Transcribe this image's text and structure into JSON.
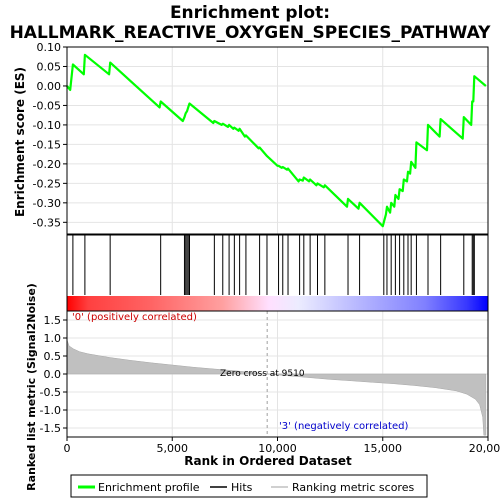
{
  "title_line1": "Enrichment plot:",
  "title_line2": "HALLMARK_REACTIVE_OXYGEN_SPECIES_PATHWAY",
  "colors": {
    "es_line": "#00ff00",
    "hits": "#000000",
    "metric_fill": "#c0c0c0",
    "pos_label": "#cc0000",
    "neg_label": "#0000cc"
  },
  "chart_data": {
    "type": "line",
    "es_panel": {
      "ylabel": "Enrichment score (ES)",
      "ylim": [
        -0.38,
        0.1
      ],
      "yticks": [
        "0.10",
        "0.05",
        "0.00",
        "-0.05",
        "-0.10",
        "-0.15",
        "-0.20",
        "-0.25",
        "-0.30",
        "-0.35"
      ],
      "ytick_values": [
        0.1,
        0.05,
        0.0,
        -0.05,
        -0.1,
        -0.15,
        -0.2,
        -0.25,
        -0.3,
        -0.35
      ],
      "grid": true,
      "es_points": [
        [
          0,
          0.0
        ],
        [
          150,
          -0.01
        ],
        [
          280,
          0.055
        ],
        [
          800,
          0.03
        ],
        [
          850,
          0.08
        ],
        [
          2000,
          0.03
        ],
        [
          2050,
          0.06
        ],
        [
          4400,
          -0.055
        ],
        [
          4450,
          -0.04
        ],
        [
          5500,
          -0.09
        ],
        [
          5580,
          -0.08
        ],
        [
          5640,
          -0.07
        ],
        [
          5700,
          -0.065
        ],
        [
          5760,
          -0.055
        ],
        [
          5820,
          -0.045
        ],
        [
          6950,
          -0.095
        ],
        [
          7000,
          -0.09
        ],
        [
          7350,
          -0.1
        ],
        [
          7400,
          -0.097
        ],
        [
          7650,
          -0.105
        ],
        [
          7700,
          -0.1
        ],
        [
          7900,
          -0.11
        ],
        [
          7950,
          -0.107
        ],
        [
          8150,
          -0.115
        ],
        [
          8200,
          -0.11
        ],
        [
          8450,
          -0.13
        ],
        [
          8500,
          -0.127
        ],
        [
          9100,
          -0.16
        ],
        [
          9150,
          -0.158
        ],
        [
          9500,
          -0.18
        ],
        [
          10000,
          -0.205
        ],
        [
          10050,
          -0.205
        ],
        [
          10200,
          -0.21
        ],
        [
          10250,
          -0.208
        ],
        [
          10450,
          -0.215
        ],
        [
          10500,
          -0.212
        ],
        [
          11000,
          -0.245
        ],
        [
          11050,
          -0.24
        ],
        [
          11200,
          -0.243
        ],
        [
          11250,
          -0.235
        ],
        [
          11500,
          -0.245
        ],
        [
          11550,
          -0.24
        ],
        [
          11850,
          -0.255
        ],
        [
          11900,
          -0.25
        ],
        [
          12200,
          -0.26
        ],
        [
          12250,
          -0.255
        ],
        [
          13300,
          -0.31
        ],
        [
          13350,
          -0.29
        ],
        [
          13850,
          -0.315
        ],
        [
          13900,
          -0.3
        ],
        [
          15000,
          -0.36
        ],
        [
          15050,
          -0.35
        ],
        [
          15150,
          -0.33
        ],
        [
          15200,
          -0.31
        ],
        [
          15350,
          -0.325
        ],
        [
          15400,
          -0.3
        ],
        [
          15550,
          -0.31
        ],
        [
          15600,
          -0.28
        ],
        [
          15750,
          -0.29
        ],
        [
          15800,
          -0.265
        ],
        [
          15950,
          -0.27
        ],
        [
          16000,
          -0.24
        ],
        [
          16150,
          -0.245
        ],
        [
          16200,
          -0.22
        ],
        [
          16300,
          -0.225
        ],
        [
          16350,
          -0.195
        ],
        [
          16550,
          -0.21
        ],
        [
          16600,
          -0.145
        ],
        [
          17100,
          -0.165
        ],
        [
          17150,
          -0.1
        ],
        [
          17700,
          -0.13
        ],
        [
          17750,
          -0.085
        ],
        [
          18800,
          -0.135
        ],
        [
          18850,
          -0.08
        ],
        [
          19200,
          -0.1
        ],
        [
          19250,
          -0.04
        ],
        [
          19300,
          -0.04
        ],
        [
          19350,
          0.025
        ],
        [
          19900,
          0.0
        ]
      ]
    },
    "hits_x": [
      280,
      850,
      2050,
      4450,
      5580,
      5640,
      5700,
      5760,
      5820,
      7000,
      7400,
      7700,
      7950,
      8200,
      8500,
      9150,
      9500,
      10050,
      10250,
      10500,
      11050,
      11250,
      11550,
      11900,
      12250,
      13350,
      13900,
      15050,
      15200,
      15400,
      15600,
      15800,
      16000,
      16200,
      16350,
      16600,
      17150,
      17750,
      18850,
      19250,
      19300,
      19350
    ],
    "metric_panel": {
      "ylabel": "Ranked list metric (Signal2Noise)",
      "ylim": [
        -1.75,
        1.75
      ],
      "yticks": [
        "1.5",
        "1.0",
        "0.5",
        "0.0",
        "-0.5",
        "-1.0",
        "-1.5"
      ],
      "ytick_values": [
        1.5,
        1.0,
        0.5,
        0.0,
        -0.5,
        -1.0,
        -1.5
      ],
      "grid": true,
      "profile": [
        [
          0,
          0.95
        ],
        [
          100,
          0.78
        ],
        [
          300,
          0.7
        ],
        [
          600,
          0.62
        ],
        [
          1000,
          0.56
        ],
        [
          2000,
          0.46
        ],
        [
          3000,
          0.38
        ],
        [
          4000,
          0.31
        ],
        [
          5000,
          0.25
        ],
        [
          6000,
          0.19
        ],
        [
          7000,
          0.14
        ],
        [
          8000,
          0.09
        ],
        [
          9000,
          0.03
        ],
        [
          9510,
          0.0
        ],
        [
          10500,
          -0.05
        ],
        [
          11500,
          -0.1
        ],
        [
          12500,
          -0.15
        ],
        [
          13500,
          -0.19
        ],
        [
          14500,
          -0.23
        ],
        [
          15500,
          -0.27
        ],
        [
          16500,
          -0.32
        ],
        [
          17500,
          -0.38
        ],
        [
          18500,
          -0.47
        ],
        [
          19000,
          -0.56
        ],
        [
          19400,
          -0.7
        ],
        [
          19600,
          -0.85
        ],
        [
          19750,
          -1.2
        ],
        [
          19800,
          -1.7
        ],
        [
          19900,
          -1.7
        ]
      ],
      "pos_label": "'0' (positively correlated)",
      "neg_label": "'3' (negatively correlated)",
      "zero_cross_label": "Zero cross at 9510",
      "zero_cross_x": 9510
    },
    "xlabel": "Rank in Ordered Dataset",
    "xlim": [
      0,
      20000
    ],
    "xticks": [
      "0",
      "5,000",
      "10,000",
      "15,000",
      "20,000"
    ],
    "xtick_values": [
      0,
      5000,
      10000,
      15000,
      20000
    ],
    "legend": {
      "placement": "bottom",
      "items": [
        "Enrichment profile",
        "Hits",
        "Ranking metric scores"
      ]
    }
  }
}
